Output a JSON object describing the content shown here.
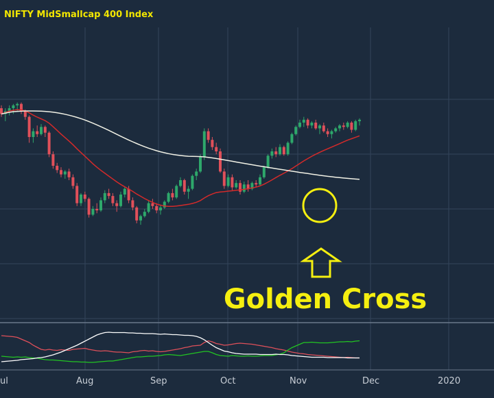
{
  "chart_data": [
    {
      "type": "candlestick",
      "title": "NIFTY MidSmallcap 400 Index",
      "x_tick_labels": [
        "ul",
        "Aug",
        "Sep",
        "Oct",
        "Nov",
        "Dec",
        "2020"
      ],
      "annotation": "Golden Cross",
      "colors": {
        "background": "#1c2b3d",
        "grid": "#33445a",
        "up_candle": "#2ea86b",
        "down_candle": "#e0505a",
        "ma_short": "#d42a2a",
        "ma_long": "#f2f2e6",
        "title": "#f2e600",
        "annotation": "#f5ef10"
      },
      "series": [
        {
          "type": "candlestick",
          "values": [
            [
              100,
              101,
              97,
              98
            ],
            [
              98,
              100,
              95.5,
              99
            ],
            [
              99,
              101,
              97.5,
              100
            ],
            [
              100,
              101.5,
              98,
              101
            ],
            [
              101,
              102,
              99,
              101.5
            ],
            [
              101.5,
              102,
              98,
              99
            ],
            [
              99,
              99.5,
              96,
              97
            ],
            [
              97,
              97.5,
              88,
              90
            ],
            [
              90,
              93,
              88,
              92
            ],
            [
              92,
              94,
              90,
              91
            ],
            [
              91,
              94.5,
              90.5,
              93.5
            ],
            [
              93.5,
              94,
              90,
              91.5
            ],
            [
              91.5,
              92,
              83,
              84
            ],
            [
              84,
              85,
              79,
              80
            ],
            [
              80,
              81,
              77.5,
              78.5
            ],
            [
              78.5,
              79.5,
              76,
              77
            ],
            [
              77,
              78.5,
              75.5,
              78
            ],
            [
              78,
              79,
              75,
              76
            ],
            [
              76,
              77,
              72,
              73
            ],
            [
              73,
              74,
              66,
              67
            ],
            [
              67,
              70.5,
              66,
              70
            ],
            [
              70,
              71,
              67.5,
              68.5
            ],
            [
              68.5,
              69,
              62,
              63
            ],
            [
              63,
              66,
              62.5,
              65
            ],
            [
              65,
              67,
              63.5,
              64.5
            ],
            [
              64.5,
              69,
              64,
              68
            ],
            [
              68,
              71.5,
              67,
              70.5
            ],
            [
              70.5,
              72,
              68.5,
              69.5
            ],
            [
              69.5,
              70.5,
              66,
              67
            ],
            [
              67,
              68,
              64,
              66
            ],
            [
              66,
              71,
              65.5,
              70
            ],
            [
              70,
              72.5,
              69,
              72
            ],
            [
              72,
              73,
              67,
              68
            ],
            [
              68,
              69,
              64.5,
              65.5
            ],
            [
              65.5,
              66,
              60,
              61
            ],
            [
              61,
              63,
              59.5,
              62.5
            ],
            [
              62.5,
              65,
              62,
              64
            ],
            [
              64,
              68,
              63.5,
              67
            ],
            [
              67,
              68.5,
              65,
              66
            ],
            [
              66,
              67,
              63.5,
              64.5
            ],
            [
              64.5,
              66.5,
              63,
              65.5
            ],
            [
              65.5,
              68,
              65,
              67.5
            ],
            [
              67.5,
              71,
              67,
              70.5
            ],
            [
              70.5,
              72,
              68,
              69
            ],
            [
              69,
              73.5,
              68.5,
              73
            ],
            [
              73,
              76,
              72.5,
              75
            ],
            [
              75,
              75.5,
              70,
              71
            ],
            [
              71,
              73,
              68.5,
              72
            ],
            [
              72,
              77,
              71.5,
              76.5
            ],
            [
              76.5,
              79,
              75,
              78
            ],
            [
              78,
              84,
              77.5,
              83
            ],
            [
              83,
              93,
              82,
              92
            ],
            [
              92,
              93,
              88,
              89
            ],
            [
              89,
              90,
              85.5,
              86.5
            ],
            [
              86.5,
              88,
              84,
              85
            ],
            [
              85,
              86,
              77.5,
              78
            ],
            [
              78,
              79,
              72,
              73
            ],
            [
              73,
              77,
              72.5,
              76
            ],
            [
              76,
              77,
              71.5,
              72.5
            ],
            [
              72.5,
              75,
              72,
              74
            ],
            [
              74,
              75,
              70,
              71
            ],
            [
              71,
              74.5,
              70.5,
              73.5
            ],
            [
              73.5,
              75,
              71,
              72
            ],
            [
              72,
              74.5,
              71.5,
              74
            ],
            [
              74,
              75,
              72.5,
              73.5
            ],
            [
              73.5,
              77,
              73,
              76
            ],
            [
              76,
              80,
              75.5,
              79.5
            ],
            [
              79.5,
              84,
              79,
              83.5
            ],
            [
              83.5,
              86,
              82.5,
              85
            ],
            [
              85,
              86.5,
              83,
              84
            ],
            [
              84,
              87.5,
              83.5,
              86.5
            ],
            [
              86.5,
              87,
              83.5,
              84
            ],
            [
              84,
              88.5,
              83.5,
              88
            ],
            [
              88,
              91.5,
              87.5,
              91
            ],
            [
              91,
              94,
              90.5,
              93.5
            ],
            [
              93.5,
              96,
              93,
              95
            ],
            [
              95,
              97,
              93.5,
              96
            ],
            [
              96,
              96.5,
              93,
              94
            ],
            [
              94,
              95.5,
              93,
              95
            ],
            [
              95,
              96,
              92.5,
              93
            ],
            [
              93,
              94.5,
              91,
              94
            ],
            [
              94,
              95,
              91.5,
              92
            ],
            [
              92,
              93,
              90,
              91
            ],
            [
              91,
              92.5,
              89.5,
              92
            ],
            [
              92,
              93.5,
              91.5,
              93
            ],
            [
              93,
              94.5,
              92,
              94
            ],
            [
              94,
              95,
              92.5,
              93.5
            ],
            [
              93.5,
              95.5,
              93,
              95
            ],
            [
              95,
              95.5,
              91.5,
              92.5
            ],
            [
              92.5,
              96,
              92,
              95.5
            ],
            [
              95.5,
              96.5,
              94,
              96
            ]
          ]
        },
        {
          "type": "line",
          "name": "",
          "role": "ma_short",
          "values": [
            98,
            98.5,
            99,
            99.3,
            99.5,
            99.4,
            99.1,
            98.4,
            97.6,
            96.9,
            96.3,
            95.7,
            94.8,
            93.6,
            92.3,
            91,
            89.8,
            88.6,
            87.3,
            85.9,
            84.6,
            83.3,
            82,
            80.7,
            79.5,
            78.4,
            77.4,
            76.4,
            75.4,
            74.4,
            73.5,
            72.7,
            71.9,
            71.1,
            70.2,
            69.4,
            68.6,
            67.9,
            67.3,
            66.7,
            66.3,
            66,
            65.9,
            65.9,
            66,
            66.2,
            66.4,
            66.6,
            66.9,
            67.3,
            67.9,
            68.8,
            69.6,
            70.2,
            70.7,
            70.9,
            71,
            71.2,
            71.3,
            71.5,
            71.6,
            71.8,
            72,
            72.3,
            72.6,
            73,
            73.6,
            74.3,
            75.1,
            75.9,
            76.7,
            77.4,
            78.2,
            79,
            79.9,
            80.8,
            81.7,
            82.5,
            83.3,
            84,
            84.7,
            85.3,
            85.9,
            86.5,
            87.1,
            87.7,
            88.3,
            88.9,
            89.4,
            89.9,
            90.4
          ]
        },
        {
          "type": "line",
          "name": "",
          "role": "ma_long",
          "values": [
            98,
            98.3,
            98.6,
            98.8,
            98.9,
            99,
            99.04,
            99.05,
            99.04,
            99.02,
            98.98,
            98.9,
            98.78,
            98.62,
            98.42,
            98.18,
            97.9,
            97.58,
            97.22,
            96.82,
            96.38,
            95.9,
            95.38,
            94.82,
            94.22,
            93.6,
            92.96,
            92.3,
            91.62,
            90.94,
            90.26,
            89.6,
            88.96,
            88.34,
            87.74,
            87.16,
            86.62,
            86.12,
            85.66,
            85.24,
            84.86,
            84.52,
            84.22,
            83.96,
            83.74,
            83.56,
            83.42,
            83.32,
            83.26,
            83.24,
            83.2,
            83.1,
            82.94,
            82.74,
            82.52,
            82.28,
            82.04,
            81.8,
            81.56,
            81.32,
            81.08,
            80.84,
            80.6,
            80.36,
            80.12,
            79.88,
            79.66,
            79.44,
            79.22,
            79,
            78.78,
            78.56,
            78.34,
            78.12,
            77.9,
            77.7,
            77.5,
            77.3,
            77.1,
            76.9,
            76.7,
            76.52,
            76.34,
            76.18,
            76.02,
            75.88,
            75.74,
            75.62,
            75.5,
            75.38,
            75.28
          ]
        }
      ]
    },
    {
      "type": "line",
      "series": [
        {
          "name": "",
          "role": "red",
          "values": [
            80,
            79,
            78,
            77,
            75,
            70,
            65,
            60,
            52,
            46,
            40,
            38,
            40,
            38,
            37,
            39,
            38,
            37,
            40,
            41,
            42,
            43,
            40,
            38,
            36,
            35,
            36,
            35,
            33,
            32,
            32,
            31,
            30,
            33,
            34,
            36,
            37,
            35,
            36,
            34,
            33,
            34,
            36,
            38,
            40,
            42,
            45,
            47,
            50,
            51,
            52,
            60,
            65,
            62,
            57,
            55,
            52,
            53,
            55,
            57,
            58,
            57,
            56,
            55,
            53,
            51,
            49,
            47,
            45,
            42,
            40,
            38,
            35,
            32,
            30,
            28,
            27,
            25,
            24,
            23,
            22,
            21,
            20,
            19,
            18,
            17,
            16,
            17,
            16,
            15,
            15
          ]
        },
        {
          "name": "",
          "role": "green",
          "values": [
            20,
            19,
            18,
            17,
            18,
            17,
            18,
            16,
            15,
            14,
            12,
            10,
            9,
            9,
            8,
            7,
            6,
            5,
            4,
            4,
            3,
            3,
            2,
            2,
            3,
            4,
            5,
            6,
            6,
            8,
            10,
            12,
            14,
            16,
            18,
            18,
            19,
            20,
            20,
            21,
            22,
            24,
            25,
            24,
            23,
            22,
            24,
            26,
            28,
            30,
            32,
            34,
            34,
            30,
            25,
            22,
            21,
            20,
            22,
            21,
            20,
            20,
            21,
            20,
            20,
            21,
            22,
            22,
            22,
            24,
            26,
            30,
            38,
            45,
            50,
            55,
            60,
            60,
            61,
            60,
            59,
            59,
            59,
            60,
            61,
            62,
            62,
            63,
            62,
            64,
            65
          ]
        },
        {
          "name": "",
          "role": "white",
          "values": [
            4,
            5,
            6,
            7,
            8,
            10,
            11,
            12,
            13,
            15,
            16,
            18,
            21,
            24,
            28,
            32,
            37,
            42,
            47,
            52,
            58,
            64,
            70,
            76,
            82,
            86,
            89,
            90,
            89,
            89,
            89,
            89,
            88,
            88,
            87,
            87,
            86,
            86,
            86,
            85,
            84,
            85,
            84,
            83,
            83,
            82,
            81,
            81,
            80,
            78,
            74,
            68,
            60,
            52,
            45,
            40,
            35,
            33,
            30,
            28,
            27,
            26,
            26,
            26,
            26,
            25,
            25,
            25,
            25,
            26,
            25,
            25,
            24,
            22,
            21,
            20,
            19,
            18,
            17,
            17,
            17,
            17,
            16,
            16,
            16,
            16,
            16,
            15,
            15,
            15,
            15
          ]
        }
      ]
    }
  ]
}
